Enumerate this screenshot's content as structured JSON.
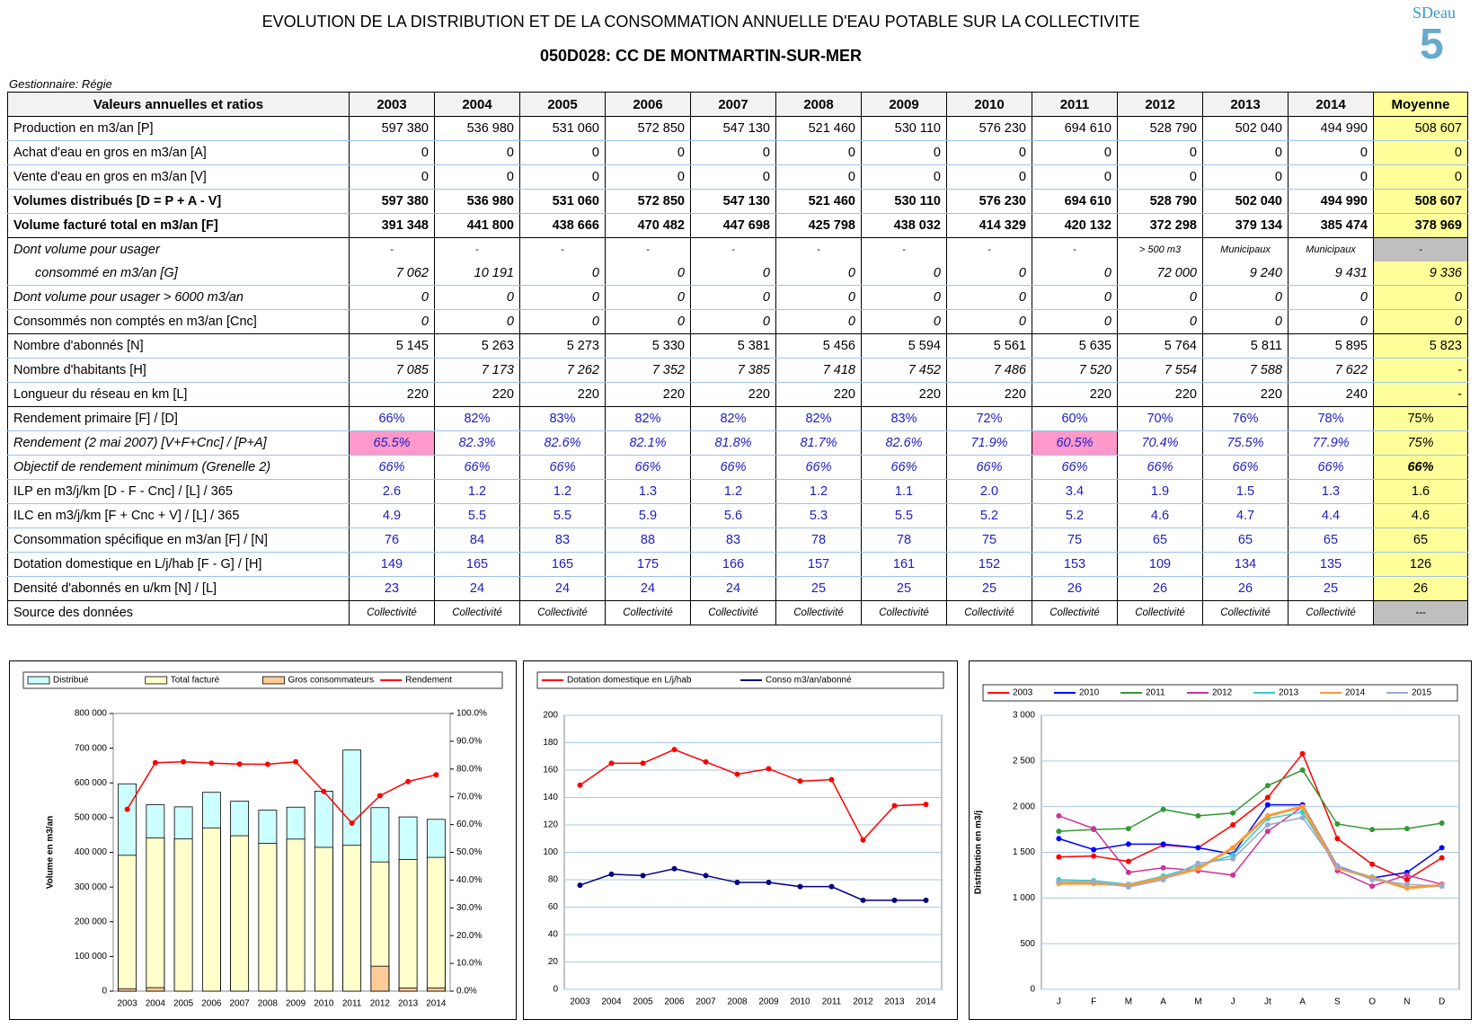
{
  "header": {
    "title": "EVOLUTION DE LA DISTRIBUTION ET DE LA CONSOMMATION ANNUELLE D'EAU POTABLE SUR LA COLLECTIVITE",
    "subtitle": "050D028: CC DE MONTMARTIN-SUR-MER",
    "manager": "Gestionnaire: Régie",
    "logo": "SDeau"
  },
  "table": {
    "columns": [
      "Valeurs annuelles et ratios",
      "2003",
      "2004",
      "2005",
      "2006",
      "2007",
      "2008",
      "2009",
      "2010",
      "2011",
      "2012",
      "2013",
      "2014",
      "Moyenne"
    ],
    "rows": [
      [
        "Production en m3/an  [P]",
        "597 380",
        "536 980",
        "531 060",
        "572 850",
        "547 130",
        "521 460",
        "530 110",
        "576 230",
        "694 610",
        "528 790",
        "502 040",
        "494 990",
        "508 607"
      ],
      [
        "Achat d'eau en gros en m3/an  [A]",
        "0",
        "0",
        "0",
        "0",
        "0",
        "0",
        "0",
        "0",
        "0",
        "0",
        "0",
        "0",
        "0"
      ],
      [
        "Vente d'eau en gros en m3/an  [V]",
        "0",
        "0",
        "0",
        "0",
        "0",
        "0",
        "0",
        "0",
        "0",
        "0",
        "0",
        "0",
        "0"
      ],
      [
        "Volumes distribués  [D = P + A - V]",
        "597 380",
        "536 980",
        "531 060",
        "572 850",
        "547 130",
        "521 460",
        "530 110",
        "576 230",
        "694 610",
        "528 790",
        "502 040",
        "494 990",
        "508 607"
      ],
      [
        "Volume facturé total en m3/an  [F]",
        "391 348",
        "441 800",
        "438 666",
        "470 482",
        "447 698",
        "425 798",
        "438 032",
        "414 329",
        "420 132",
        "372 298",
        "379 134",
        "385 474",
        "378 969"
      ],
      [
        "Dont volume pour usager",
        "-",
        "-",
        "-",
        "-",
        "-",
        "-",
        "-",
        "-",
        "-",
        "> 500 m3",
        "Municipaux",
        "Municipaux",
        "-"
      ],
      [
        "consommé en m3/an    [G]",
        "7 062",
        "10 191",
        "0",
        "0",
        "0",
        "0",
        "0",
        "0",
        "0",
        "72 000",
        "9 240",
        "9 431",
        "9 336"
      ],
      [
        "Dont volume pour usager > 6000 m3/an",
        "0",
        "0",
        "0",
        "0",
        "0",
        "0",
        "0",
        "0",
        "0",
        "0",
        "0",
        "0",
        "0"
      ],
      [
        "Consommés non comptés en m3/an [Cnc]",
        "0",
        "0",
        "0",
        "0",
        "0",
        "0",
        "0",
        "0",
        "0",
        "0",
        "0",
        "0",
        "0"
      ],
      [
        "Nombre d'abonnés [N]",
        "5 145",
        "5 263",
        "5 273",
        "5 330",
        "5 381",
        "5 456",
        "5 594",
        "5 561",
        "5 635",
        "5 764",
        "5 811",
        "5 895",
        "5 823"
      ],
      [
        "Nombre d'habitants [H]",
        "7 085",
        "7 173",
        "7 262",
        "7 352",
        "7 385",
        "7 418",
        "7 452",
        "7 486",
        "7 520",
        "7 554",
        "7 588",
        "7 622",
        "-"
      ],
      [
        "Longueur du réseau en km  [L]",
        "220",
        "220",
        "220",
        "220",
        "220",
        "220",
        "220",
        "220",
        "220",
        "220",
        "220",
        "240",
        "-"
      ],
      [
        "Rendement primaire  [F] / [D]",
        "66%",
        "82%",
        "83%",
        "82%",
        "82%",
        "82%",
        "83%",
        "72%",
        "60%",
        "70%",
        "76%",
        "78%",
        "75%"
      ],
      [
        "Rendement (2 mai 2007)  [V+F+Cnc] / [P+A]",
        "65.5%",
        "82.3%",
        "82.6%",
        "82.1%",
        "81.8%",
        "81.7%",
        "82.6%",
        "71.9%",
        "60.5%",
        "70.4%",
        "75.5%",
        "77.9%",
        "75%"
      ],
      [
        "Objectif de rendement minimum (Grenelle 2)",
        "66%",
        "66%",
        "66%",
        "66%",
        "66%",
        "66%",
        "66%",
        "66%",
        "66%",
        "66%",
        "66%",
        "66%",
        "66%"
      ],
      [
        "ILP en m3/j/km  [D - F - Cnc] / [L] / 365",
        "2.6",
        "1.2",
        "1.2",
        "1.3",
        "1.2",
        "1.2",
        "1.1",
        "2.0",
        "3.4",
        "1.9",
        "1.5",
        "1.3",
        "1.6"
      ],
      [
        "ILC en m3/j/km  [F + Cnc + V] / [L] / 365",
        "4.9",
        "5.5",
        "5.5",
        "5.9",
        "5.6",
        "5.3",
        "5.5",
        "5.2",
        "5.2",
        "4.6",
        "4.7",
        "4.4",
        "4.6"
      ],
      [
        "Consommation spécifique en m3/an  [F] / [N]",
        "76",
        "84",
        "83",
        "88",
        "83",
        "78",
        "78",
        "75",
        "75",
        "65",
        "65",
        "65",
        "65"
      ],
      [
        "Dotation domestique en L/j/hab  [F - G] / [H]",
        "149",
        "165",
        "165",
        "175",
        "166",
        "157",
        "161",
        "152",
        "153",
        "109",
        "134",
        "135",
        "126"
      ],
      [
        "Densité d'abonnés en u/km  [N] / [L]",
        "23",
        "24",
        "24",
        "24",
        "24",
        "25",
        "25",
        "25",
        "26",
        "26",
        "26",
        "25",
        "26"
      ],
      [
        "Source des données",
        "Collectivité",
        "Collectivité",
        "Collectivité",
        "Collectivité",
        "Collectivité",
        "Collectivité",
        "Collectivité",
        "Collectivité",
        "Collectivité",
        "Collectivité",
        "Collectivité",
        "Collectivité",
        "---"
      ]
    ]
  },
  "chart_data": [
    {
      "type": "bar",
      "categories": [
        "2003",
        "2004",
        "2005",
        "2006",
        "2007",
        "2008",
        "2009",
        "2010",
        "2011",
        "2012",
        "2013",
        "2014"
      ],
      "y_label": "Volume en m3/an",
      "grid": false,
      "ylim": [
        0,
        800000
      ],
      "yticks": [
        0,
        {
          "value": 100000,
          "label": "100 000"
        },
        {
          "value": 200000,
          "label": "200 000"
        },
        {
          "value": 300000,
          "label": "300 000"
        },
        {
          "value": 400000,
          "label": "400 000"
        },
        {
          "value": 500000,
          "label": "500 000"
        },
        {
          "value": 600000,
          "label": "600 000"
        },
        {
          "value": 700000,
          "label": "700 000"
        },
        {
          "value": 800000,
          "label": "800 000"
        }
      ],
      "y2lim": [
        0,
        100
      ],
      "y2ticks": [
        {
          "value": 0,
          "label": "0.0%"
        },
        {
          "value": 10,
          "label": "10.0%"
        },
        {
          "value": 20,
          "label": "20.0%"
        },
        {
          "value": 30,
          "label": "30.0%"
        },
        {
          "value": 40,
          "label": "40.0%"
        },
        {
          "value": 50,
          "label": "50.0%"
        },
        {
          "value": 60,
          "label": "60.0%"
        },
        {
          "value": 70,
          "label": "70.0%"
        },
        {
          "value": 80,
          "label": "80.0%"
        },
        {
          "value": 90,
          "label": "90.0%"
        },
        {
          "value": 100,
          "label": "100.0%"
        }
      ],
      "series": [
        {
          "name": "Distribué",
          "color": "#ccffff",
          "values": [
            597380,
            536980,
            531060,
            572850,
            547130,
            521460,
            530110,
            576230,
            694610,
            528790,
            502040,
            494990
          ]
        },
        {
          "name": "Total facturé",
          "color": "#ffffcc",
          "values": [
            391348,
            441800,
            438666,
            470482,
            447698,
            425798,
            438032,
            414329,
            420132,
            372298,
            379134,
            385474
          ]
        },
        {
          "name": "Gros consommateurs",
          "color": "#ffcc99",
          "values": [
            7062,
            10191,
            0,
            0,
            0,
            0,
            0,
            0,
            0,
            72000,
            9240,
            9431
          ]
        },
        {
          "name": "Rendement",
          "color": "#ff0000",
          "type": "line",
          "axis": "y2",
          "values": [
            65.5,
            82.3,
            82.6,
            82.1,
            81.8,
            81.7,
            82.6,
            71.9,
            60.5,
            70.4,
            75.5,
            77.9
          ]
        }
      ]
    },
    {
      "type": "line",
      "categories": [
        "2003",
        "2004",
        "2005",
        "2006",
        "2007",
        "2008",
        "2009",
        "2010",
        "2011",
        "2012",
        "2013",
        "2014"
      ],
      "grid": true,
      "ylim": [
        0,
        200
      ],
      "yticks": [
        0,
        20,
        40,
        60,
        80,
        100,
        120,
        140,
        160,
        180,
        200
      ],
      "series": [
        {
          "name": "Dotation domestique en L/j/hab",
          "color": "#ff0000",
          "values": [
            149,
            165,
            165,
            175,
            166,
            157,
            161,
            152,
            153,
            109,
            134,
            135
          ]
        },
        {
          "name": "Conso m3/an/abonné",
          "color": "#000080",
          "values": [
            76,
            84,
            83,
            88,
            83,
            78,
            78,
            75,
            75,
            65,
            65,
            65
          ]
        }
      ]
    },
    {
      "type": "line",
      "categories": [
        "J",
        "F",
        "M",
        "A",
        "M",
        "J",
        "Jt",
        "A",
        "S",
        "O",
        "N",
        "D"
      ],
      "grid": true,
      "y_label": "Distribution en m3/j",
      "ylim": [
        0,
        3000
      ],
      "yticks": [
        0,
        500,
        {
          "value": 1000,
          "label": "1 000"
        },
        {
          "value": 1500,
          "label": "1 500"
        },
        {
          "value": 2000,
          "label": "2 000"
        },
        {
          "value": 2500,
          "label": "2 500"
        },
        {
          "value": 3000,
          "label": "3 000"
        }
      ],
      "series": [
        {
          "name": "2003",
          "color": "#ff0000",
          "values": [
            1450,
            1460,
            1400,
            1580,
            1550,
            1800,
            2100,
            2580,
            1650,
            1370,
            1200,
            1440
          ]
        },
        {
          "name": "2010",
          "color": "#0000ff",
          "values": [
            1650,
            1530,
            1590,
            1590,
            1550,
            1480,
            2020,
            2020,
            1350,
            1220,
            1280,
            1550
          ]
        },
        {
          "name": "2011",
          "color": "#339933",
          "values": [
            1730,
            1750,
            1760,
            1970,
            1900,
            1930,
            2230,
            2400,
            1810,
            1750,
            1760,
            1820
          ]
        },
        {
          "name": "2012",
          "color": "#cc3399",
          "values": [
            1900,
            1760,
            1280,
            1330,
            1300,
            1250,
            1730,
            2000,
            1300,
            1130,
            1250,
            1150
          ]
        },
        {
          "name": "2013",
          "color": "#33cccc",
          "values": [
            1200,
            1190,
            1150,
            1240,
            1350,
            1470,
            1870,
            1940,
            1340,
            1230,
            1120,
            1130
          ]
        },
        {
          "name": "2014",
          "color": "#ff9933",
          "values": [
            1160,
            1160,
            1140,
            1220,
            1320,
            1550,
            1900,
            2000,
            1330,
            1220,
            1110,
            1140
          ]
        },
        {
          "name": "2015",
          "color": "#99aacc",
          "values": [
            1180,
            1180,
            1120,
            1200,
            1380,
            1430,
            1800,
            1880,
            1350,
            1200,
            1150,
            1130
          ]
        }
      ]
    }
  ]
}
